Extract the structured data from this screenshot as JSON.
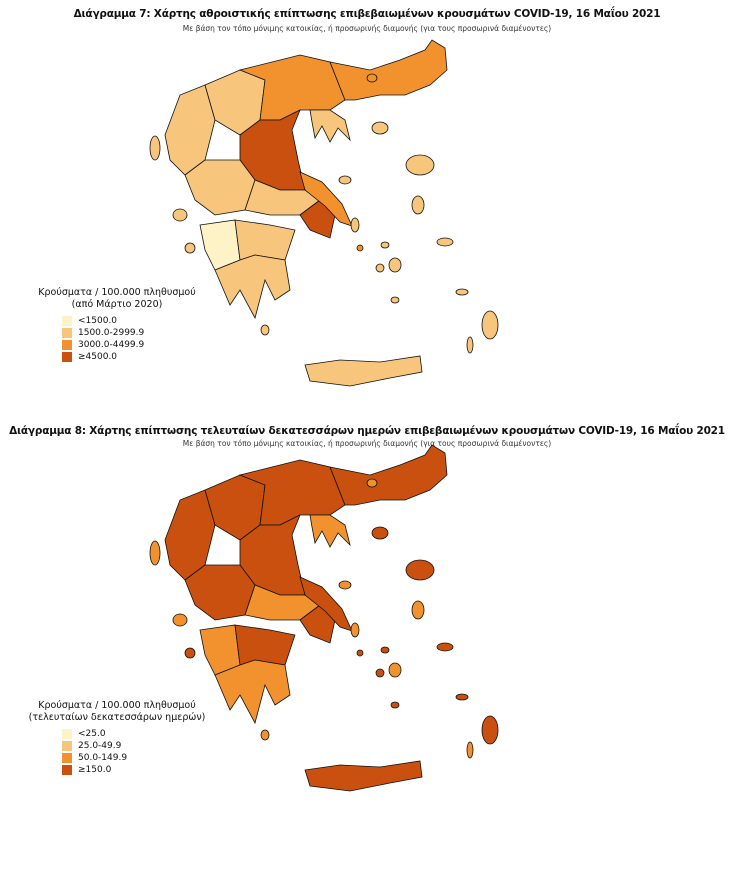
{
  "classes_colors": [
    "#fdf3c6",
    "#f7c67c",
    "#f2922e",
    "#c9500e"
  ],
  "maps": [
    {
      "title": "Διάγραμμα 7: Χάρτης αθροιστικής επίπτωσης επιβεβαιωμένων κρουσμάτων COVID-19, 16 Μαΐου 2021",
      "subtitle": "Με βάση τον τόπο μόνιμης κατοικίας, ή προσωρινής διαμονής (για τους προσωρινά διαμένοντες)",
      "legend": {
        "title_line1": "Κρούσματα / 100.000 πληθυσμού",
        "title_line2": "(από Μάρτιο 2020)",
        "items": [
          "<1500.0",
          "1500.0-2999.9",
          "3000.0-4499.9",
          "≥4500.0"
        ]
      },
      "region_classes": {
        "epirus": 1,
        "west-macedonia": 1,
        "central-macedonia": 2,
        "chalkidiki": 1,
        "thrace": 2,
        "thessaly": 3,
        "aetolia": 1,
        "central-greece": 1,
        "attica": 3,
        "euboea": 2,
        "pelop-west": 0,
        "pelop-ne": 1,
        "pelop-south": 1,
        "crete": 1,
        "corfu": 1,
        "kefalonia": 1,
        "zakynthos": 1,
        "lesvos": 1,
        "chios": 1,
        "samos": 1,
        "limnos": 1,
        "thasos": 2,
        "rhodes": 1,
        "kos": 1,
        "naxos": 1,
        "paros": 1,
        "syros": 2,
        "mykonos": 1,
        "andros": 1,
        "karpathos": 1,
        "kythira": 1,
        "santorini": 1,
        "skyros": 1
      }
    },
    {
      "title": "Διάγραμμα 8: Χάρτης επίπτωσης τελευταίων δεκατεσσάρων ημερών επιβεβαιωμένων κρουσμάτων COVID-19, 16 Μαΐου 2021",
      "subtitle": "Με βάση τον τόπο μόνιμης κατοικίας, ή προσωρινής διαμονής (για τους προσωρινά διαμένοντες)",
      "legend": {
        "title_line1": "Κρούσματα / 100.000 πληθυσμού",
        "title_line2": "(τελευταίων δεκατεσσάρων ημερών)",
        "items": [
          "<25.0",
          "25.0-49.9",
          "50.0-149.9",
          "≥150.0"
        ]
      },
      "region_classes": {
        "epirus": 3,
        "west-macedonia": 3,
        "central-macedonia": 3,
        "chalkidiki": 2,
        "thrace": 3,
        "thessaly": 3,
        "aetolia": 3,
        "central-greece": 2,
        "attica": 3,
        "euboea": 3,
        "pelop-west": 2,
        "pelop-ne": 3,
        "pelop-south": 2,
        "crete": 3,
        "corfu": 2,
        "kefalonia": 2,
        "zakynthos": 3,
        "lesvos": 3,
        "chios": 2,
        "samos": 3,
        "limnos": 3,
        "thasos": 2,
        "rhodes": 3,
        "kos": 3,
        "naxos": 2,
        "paros": 3,
        "syros": 3,
        "mykonos": 3,
        "andros": 2,
        "karpathos": 2,
        "kythira": 2,
        "santorini": 3,
        "skyros": 2
      }
    }
  ]
}
